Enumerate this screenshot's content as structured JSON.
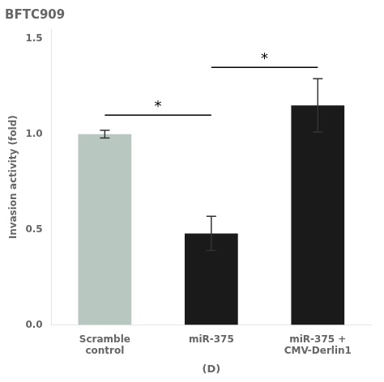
{
  "chart_data": {
    "type": "bar",
    "title": "BFTC909",
    "categories": [
      "Scramble\ncontrol",
      "miR-375",
      "miR-375 +\nCMV-Derlin1"
    ],
    "values": [
      1.0,
      0.48,
      1.15
    ],
    "errors": [
      0.02,
      0.09,
      0.14
    ],
    "colors": [
      "#b8c8c0",
      "#1a1a1a",
      "#1a1a1a"
    ],
    "ylabel": "Invasion activity (fold)",
    "xlabel": "(D)",
    "ylim": [
      0,
      1.55
    ],
    "yticks": [
      {
        "value": 0,
        "label": "0.0"
      },
      0.5,
      {
        "value": 1,
        "label": "1.0"
      },
      1.5
    ],
    "grid": false,
    "significance_brackets": [
      {
        "from": "Scramble\ncontrol",
        "to": "miR-375",
        "y": 1.1,
        "label": "*"
      },
      {
        "from": "miR-375",
        "to": "miR-375 +\nCMV-Derlin1",
        "y": 1.35,
        "label": "*"
      }
    ]
  }
}
